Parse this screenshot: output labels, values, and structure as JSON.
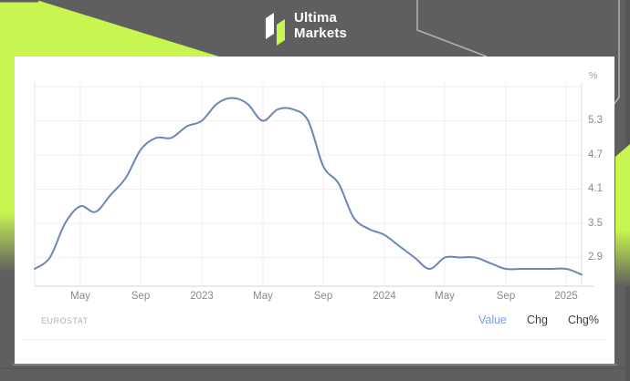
{
  "header": {
    "brand_line1": "Ultima",
    "brand_line2": "Markets"
  },
  "chart_data": {
    "type": "line",
    "source": "EUROSTAT",
    "unit": "%",
    "x": [
      "2022-02",
      "2022-03",
      "2022-04",
      "2022-05",
      "2022-06",
      "2022-07",
      "2022-08",
      "2022-09",
      "2022-10",
      "2022-11",
      "2022-12",
      "2023-01",
      "2023-02",
      "2023-03",
      "2023-04",
      "2023-05",
      "2023-06",
      "2023-07",
      "2023-08",
      "2023-09",
      "2023-10",
      "2023-11",
      "2023-12",
      "2024-01",
      "2024-02",
      "2024-03",
      "2024-04",
      "2024-05",
      "2024-06",
      "2024-07",
      "2024-08",
      "2024-09",
      "2024-10",
      "2024-11",
      "2024-12",
      "2025-01",
      "2025-02"
    ],
    "values": [
      2.7,
      2.9,
      3.5,
      3.8,
      3.7,
      4.0,
      4.3,
      4.8,
      5.0,
      5.0,
      5.2,
      5.3,
      5.6,
      5.7,
      5.6,
      5.3,
      5.5,
      5.5,
      5.3,
      4.5,
      4.2,
      3.6,
      3.4,
      3.3,
      3.1,
      2.9,
      2.7,
      2.9,
      2.9,
      2.9,
      2.8,
      2.7,
      2.7,
      2.7,
      2.7,
      2.7,
      2.6
    ],
    "x_tick_labels": [
      "May",
      "Sep",
      "2023",
      "May",
      "Sep",
      "2024",
      "May",
      "Sep",
      "2025"
    ],
    "y_tick_labels": [
      "5.3",
      "4.7",
      "4.1",
      "3.5",
      "2.9"
    ],
    "ylim": [
      2.4,
      6.0
    ],
    "grid": true,
    "legend": "none",
    "line_color": "#6c86b6"
  },
  "footer": {
    "source": "EUROSTAT",
    "links": [
      "Value",
      "Chg",
      "Chg%"
    ],
    "active_link": "Value"
  },
  "colors": {
    "header_gray": "#5f5f5f",
    "accent_lime": "#c9f550",
    "panel_white": "#ffffff",
    "line_blue": "#6c86b6",
    "link_blue": "#7f9bdb"
  }
}
